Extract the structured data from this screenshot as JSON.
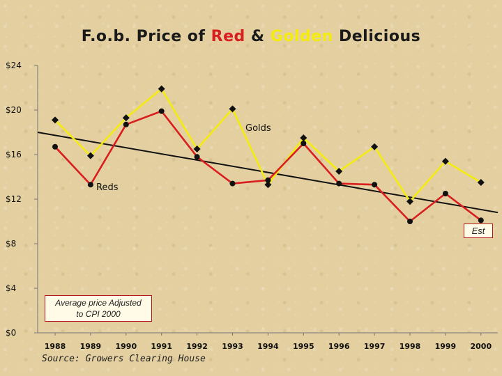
{
  "chart_data": {
    "type": "line",
    "title": {
      "part1": "F.o.b. Price of ",
      "red_word": "Red",
      "part2": " & ",
      "golden_word": "Golden",
      "part3": " Delicious"
    },
    "x": [
      "1988",
      "1989",
      "1990",
      "1991",
      "1992",
      "1993",
      "1994",
      "1995",
      "1996",
      "1997",
      "1998",
      "1999",
      "2000"
    ],
    "ylim": [
      0,
      24
    ],
    "yticks": [
      "$0",
      "$4",
      "$8",
      "$12",
      "$16",
      "$20",
      "$24"
    ],
    "yticks_values": [
      0,
      4,
      8,
      12,
      16,
      20,
      24
    ],
    "grid": false,
    "series": [
      {
        "name": "Golds",
        "color": "#f4ec10",
        "values": [
          19.1,
          15.9,
          19.3,
          21.9,
          16.5,
          20.1,
          13.3,
          17.5,
          14.5,
          16.7,
          11.8,
          15.4,
          13.5
        ]
      },
      {
        "name": "Reds",
        "color": "#d81e1e",
        "values": [
          16.7,
          13.3,
          18.7,
          19.9,
          15.8,
          13.4,
          13.7,
          17.0,
          13.4,
          13.3,
          10.0,
          12.5,
          10.1
        ]
      }
    ],
    "trend": {
      "color": "#111111",
      "start": 18.0,
      "end": 10.8
    },
    "annotations": {
      "note": [
        "Average price Adjusted",
        "to CPI 2000"
      ],
      "est": "Est"
    }
  },
  "source": "Source: Growers Clearing House"
}
